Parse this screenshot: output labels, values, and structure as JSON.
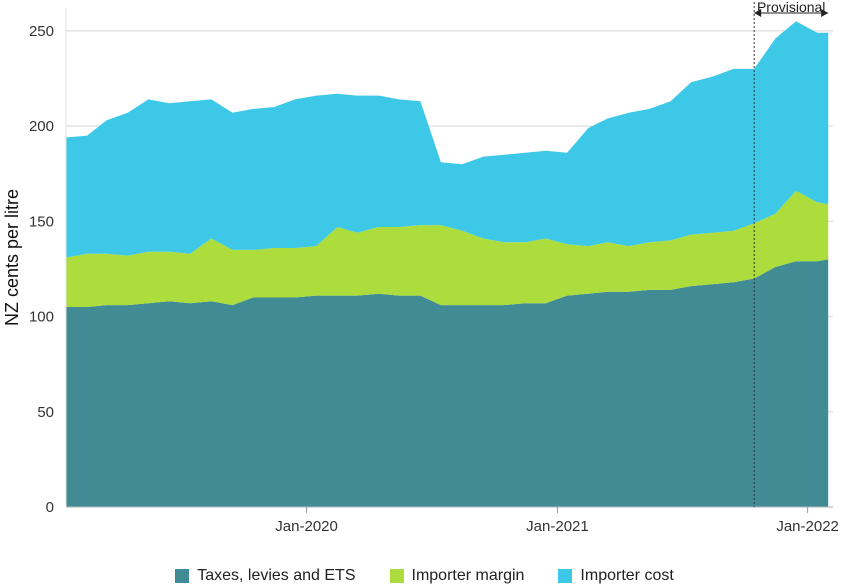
{
  "chart_data": {
    "type": "area",
    "stacked": true,
    "title": "",
    "xlabel": "",
    "ylabel": "NZ cents per litre",
    "ylim": [
      0,
      262
    ],
    "yticks": [
      0,
      50,
      100,
      150,
      200,
      250
    ],
    "xlim": [
      "2019-01-15",
      "2022-02-07"
    ],
    "xticks": [
      {
        "date": "2020-01-01",
        "label": "Jan-2020"
      },
      {
        "date": "2021-01-01",
        "label": "Jan-2021"
      },
      {
        "date": "2022-01-01",
        "label": "Jan-2022"
      }
    ],
    "grid": "horizontal",
    "legend_position": "bottom",
    "annotations": [
      {
        "type": "vertical-line",
        "date": "2021-10-15"
      },
      {
        "type": "range-arrow",
        "from": "2021-10-15",
        "to": "2022-01-31",
        "label": "Provisional"
      }
    ],
    "series": [
      {
        "name": "Taxes, levies and ETS",
        "color": "#418b95",
        "points": [
          [
            "2019-01-15",
            105
          ],
          [
            "2019-02-15",
            105
          ],
          [
            "2019-03-15",
            106
          ],
          [
            "2019-04-15",
            106
          ],
          [
            "2019-05-15",
            107
          ],
          [
            "2019-06-15",
            108
          ],
          [
            "2019-07-15",
            107
          ],
          [
            "2019-08-15",
            108
          ],
          [
            "2019-09-15",
            106
          ],
          [
            "2019-10-15",
            110
          ],
          [
            "2019-11-15",
            110
          ],
          [
            "2019-12-15",
            110
          ],
          [
            "2020-01-15",
            111
          ],
          [
            "2020-02-15",
            111
          ],
          [
            "2020-03-15",
            111
          ],
          [
            "2020-04-15",
            112
          ],
          [
            "2020-05-15",
            111
          ],
          [
            "2020-06-15",
            111
          ],
          [
            "2020-07-15",
            106
          ],
          [
            "2020-08-15",
            106
          ],
          [
            "2020-09-15",
            106
          ],
          [
            "2020-10-15",
            106
          ],
          [
            "2020-11-15",
            107
          ],
          [
            "2020-12-15",
            107
          ],
          [
            "2021-01-15",
            111
          ],
          [
            "2021-02-15",
            112
          ],
          [
            "2021-03-15",
            113
          ],
          [
            "2021-04-15",
            113
          ],
          [
            "2021-05-15",
            114
          ],
          [
            "2021-06-15",
            114
          ],
          [
            "2021-07-15",
            116
          ],
          [
            "2021-08-15",
            117
          ],
          [
            "2021-09-15",
            118
          ],
          [
            "2021-10-15",
            120
          ],
          [
            "2021-11-15",
            126
          ],
          [
            "2021-12-15",
            129
          ],
          [
            "2022-01-15",
            129
          ],
          [
            "2022-01-31",
            130
          ]
        ]
      },
      {
        "name": "Importer margin",
        "color": "#acdd3c",
        "points": [
          [
            "2019-01-15",
            26
          ],
          [
            "2019-02-15",
            28
          ],
          [
            "2019-03-15",
            27
          ],
          [
            "2019-04-15",
            26
          ],
          [
            "2019-05-15",
            27
          ],
          [
            "2019-06-15",
            26
          ],
          [
            "2019-07-15",
            26
          ],
          [
            "2019-08-15",
            33
          ],
          [
            "2019-09-15",
            29
          ],
          [
            "2019-10-15",
            25
          ],
          [
            "2019-11-15",
            26
          ],
          [
            "2019-12-15",
            26
          ],
          [
            "2020-01-15",
            26
          ],
          [
            "2020-02-15",
            36
          ],
          [
            "2020-03-15",
            33
          ],
          [
            "2020-04-15",
            35
          ],
          [
            "2020-05-15",
            36
          ],
          [
            "2020-06-15",
            37
          ],
          [
            "2020-07-15",
            42
          ],
          [
            "2020-08-15",
            39
          ],
          [
            "2020-09-15",
            35
          ],
          [
            "2020-10-15",
            33
          ],
          [
            "2020-11-15",
            32
          ],
          [
            "2020-12-15",
            34
          ],
          [
            "2021-01-15",
            27
          ],
          [
            "2021-02-15",
            25
          ],
          [
            "2021-03-15",
            26
          ],
          [
            "2021-04-15",
            24
          ],
          [
            "2021-05-15",
            25
          ],
          [
            "2021-06-15",
            26
          ],
          [
            "2021-07-15",
            27
          ],
          [
            "2021-08-15",
            27
          ],
          [
            "2021-09-15",
            27
          ],
          [
            "2021-10-15",
            29
          ],
          [
            "2021-11-15",
            28
          ],
          [
            "2021-12-15",
            37
          ],
          [
            "2022-01-15",
            31
          ],
          [
            "2022-01-31",
            29
          ]
        ]
      },
      {
        "name": "Importer cost",
        "color": "#3ec8e8",
        "points": [
          [
            "2019-01-15",
            63
          ],
          [
            "2019-02-15",
            62
          ],
          [
            "2019-03-15",
            70
          ],
          [
            "2019-04-15",
            75
          ],
          [
            "2019-05-15",
            80
          ],
          [
            "2019-06-15",
            78
          ],
          [
            "2019-07-15",
            80
          ],
          [
            "2019-08-15",
            73
          ],
          [
            "2019-09-15",
            72
          ],
          [
            "2019-10-15",
            74
          ],
          [
            "2019-11-15",
            74
          ],
          [
            "2019-12-15",
            78
          ],
          [
            "2020-01-15",
            79
          ],
          [
            "2020-02-15",
            70
          ],
          [
            "2020-03-15",
            72
          ],
          [
            "2020-04-15",
            69
          ],
          [
            "2020-05-15",
            67
          ],
          [
            "2020-06-15",
            65
          ],
          [
            "2020-07-15",
            33
          ],
          [
            "2020-08-15",
            35
          ],
          [
            "2020-09-15",
            43
          ],
          [
            "2020-10-15",
            46
          ],
          [
            "2020-11-15",
            47
          ],
          [
            "2020-12-15",
            46
          ],
          [
            "2021-01-15",
            48
          ],
          [
            "2021-02-15",
            62
          ],
          [
            "2021-03-15",
            65
          ],
          [
            "2021-04-15",
            70
          ],
          [
            "2021-05-15",
            70
          ],
          [
            "2021-06-15",
            73
          ],
          [
            "2021-07-15",
            80
          ],
          [
            "2021-08-15",
            82
          ],
          [
            "2021-09-15",
            85
          ],
          [
            "2021-10-15",
            81
          ],
          [
            "2021-11-15",
            92
          ],
          [
            "2021-12-15",
            89
          ],
          [
            "2022-01-15",
            89
          ],
          [
            "2022-01-31",
            90
          ]
        ]
      }
    ]
  }
}
